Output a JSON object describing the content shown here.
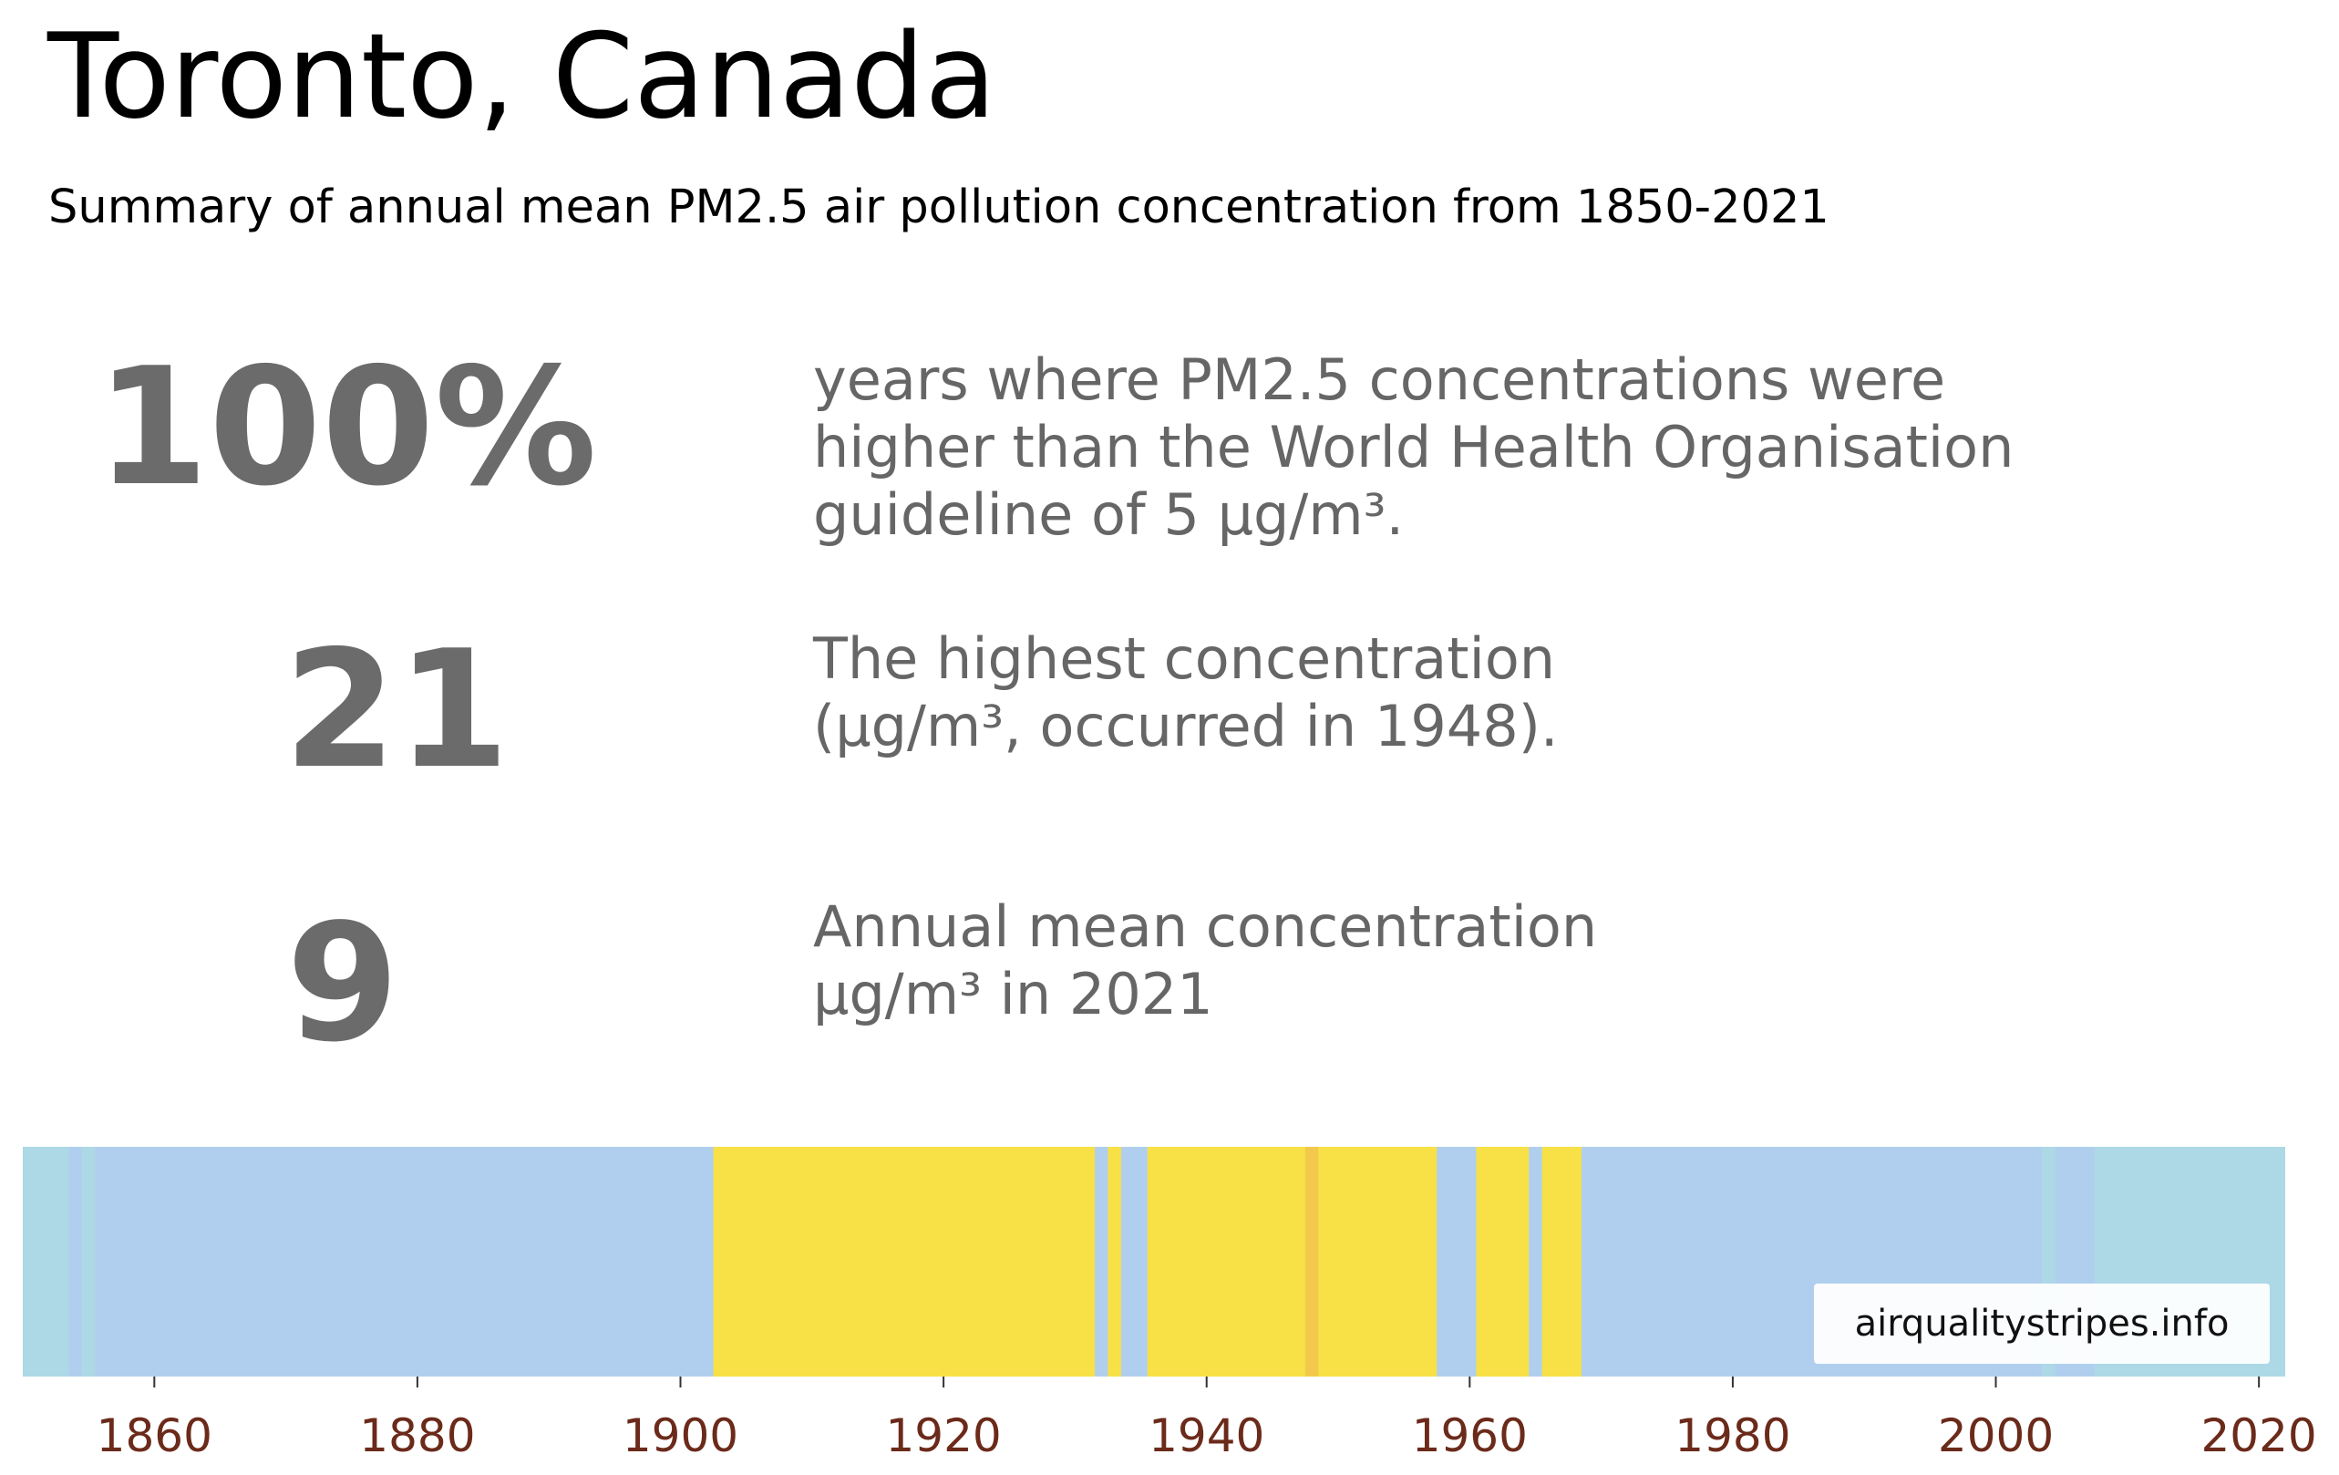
{
  "header": {
    "title": "Toronto, Canada",
    "subtitle": "Summary of annual mean PM2.5 air pollution concentration from 1850-2021"
  },
  "stats": [
    {
      "value": "100%",
      "lines": [
        "years where PM2.5 concentrations were",
        "higher than the World Health Organisation",
        "guideline of 5 μg/m³."
      ]
    },
    {
      "value": "21",
      "lines": [
        "The highest concentration",
        "(μg/m³, occurred in 1948)."
      ]
    },
    {
      "value": "9",
      "lines": [
        "Annual mean concentration",
        "μg/m³ in 2021"
      ]
    }
  ],
  "source": "airqualitystripes.info",
  "colors": {
    "text_dark": "#000000",
    "text_grey": "#666666",
    "tick_label": "#6b2a1a",
    "light_blue": "#add8e6",
    "blue": "#b0cfee",
    "yellow": "#f8e047",
    "orange": "#f2c94c"
  },
  "chart_data": {
    "type": "heatmap",
    "x_range": [
      1850,
      2022
    ],
    "tick_labels": [
      "1860",
      "1880",
      "1900",
      "1920",
      "1940",
      "1960",
      "1980",
      "2000",
      "2020"
    ],
    "tick_values": [
      1860,
      1880,
      1900,
      1920,
      1940,
      1960,
      1980,
      2000,
      2020
    ],
    "stripes": [
      {
        "start": 1850,
        "end": 1853.5,
        "color": "#add8e6"
      },
      {
        "start": 1853.5,
        "end": 1854.5,
        "color": "#b0cfee"
      },
      {
        "start": 1854.5,
        "end": 1855.5,
        "color": "#add8e6"
      },
      {
        "start": 1855.5,
        "end": 1902.5,
        "color": "#b0cfee"
      },
      {
        "start": 1902.5,
        "end": 1931.5,
        "color": "#f8e047"
      },
      {
        "start": 1931.5,
        "end": 1932.5,
        "color": "#b0cfee"
      },
      {
        "start": 1932.5,
        "end": 1933.5,
        "color": "#f8e047"
      },
      {
        "start": 1933.5,
        "end": 1935.5,
        "color": "#b0cfee"
      },
      {
        "start": 1935.5,
        "end": 1947.5,
        "color": "#f8e047"
      },
      {
        "start": 1947.5,
        "end": 1948.5,
        "color": "#f2c94c"
      },
      {
        "start": 1948.5,
        "end": 1957.5,
        "color": "#f8e047"
      },
      {
        "start": 1957.5,
        "end": 1960.5,
        "color": "#b0cfee"
      },
      {
        "start": 1960.5,
        "end": 1964.5,
        "color": "#f8e047"
      },
      {
        "start": 1964.5,
        "end": 1965.5,
        "color": "#b0cfee"
      },
      {
        "start": 1965.5,
        "end": 1968.5,
        "color": "#f8e047"
      },
      {
        "start": 1968.5,
        "end": 2003.5,
        "color": "#b0cfee"
      },
      {
        "start": 2003.5,
        "end": 2004.5,
        "color": "#add8e6"
      },
      {
        "start": 2004.5,
        "end": 2007.5,
        "color": "#b0cfee"
      },
      {
        "start": 2007.5,
        "end": 2022,
        "color": "#add8e6"
      }
    ]
  }
}
